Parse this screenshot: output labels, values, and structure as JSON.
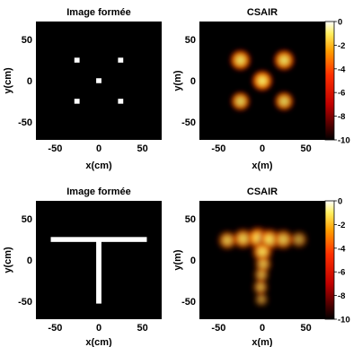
{
  "chart_data": [
    {
      "type": "heatmap",
      "title": "Image formée",
      "xlabel": "x(cm)",
      "ylabel": "y(cm)",
      "xlim": [
        -72,
        72
      ],
      "ylim": [
        -72,
        72
      ],
      "xticks": [
        "-50",
        "0",
        "50"
      ],
      "yticks": [
        "50",
        "0",
        "-50"
      ],
      "grid": false,
      "rectangles": [
        {
          "x": -25,
          "y": 25,
          "w": 6,
          "h": 6
        },
        {
          "x": 25,
          "y": 25,
          "w": 6,
          "h": 6
        },
        {
          "x": 0,
          "y": 0,
          "w": 6,
          "h": 6
        },
        {
          "x": -25,
          "y": -25,
          "w": 6,
          "h": 6
        },
        {
          "x": 25,
          "y": -25,
          "w": 6,
          "h": 6
        }
      ]
    },
    {
      "type": "heatmap",
      "title": "CSAIR",
      "xlabel": "x(m)",
      "ylabel": "y(m)",
      "xlim": [
        -72,
        72
      ],
      "ylim": [
        -72,
        72
      ],
      "xticks": [
        "-50",
        "0",
        "50"
      ],
      "yticks": [
        "50",
        "0",
        "-50"
      ],
      "colorbar": {
        "range": [
          -10,
          0
        ],
        "ticks": [
          "0",
          "-2",
          "-4",
          "-6",
          "-8",
          "-10"
        ],
        "colormap": "hot"
      },
      "blobs": [
        {
          "x": -25,
          "y": 25,
          "r": 12,
          "v": 0.9
        },
        {
          "x": 25,
          "y": 25,
          "r": 12,
          "v": 0.9
        },
        {
          "x": 0,
          "y": 0,
          "r": 12,
          "v": 0.95
        },
        {
          "x": -25,
          "y": -25,
          "r": 11,
          "v": 0.85
        },
        {
          "x": 25,
          "y": -25,
          "r": 11,
          "v": 0.85
        }
      ]
    },
    {
      "type": "heatmap",
      "title": "Image formée",
      "xlabel": "x(cm)",
      "ylabel": "y(cm)",
      "xlim": [
        -72,
        72
      ],
      "ylim": [
        -72,
        72
      ],
      "xticks": [
        "-50",
        "0",
        "50"
      ],
      "yticks": [
        "50",
        "0",
        "-50"
      ],
      "grid": false,
      "rectangles": [
        {
          "x": 0,
          "y": 25,
          "w": 110,
          "h": 6
        },
        {
          "x": 0,
          "y": -14,
          "w": 6,
          "h": 78
        }
      ]
    },
    {
      "type": "heatmap",
      "title": "CSAIR",
      "xlabel": "x(m)",
      "ylabel": "y(m)",
      "xlim": [
        -72,
        72
      ],
      "ylim": [
        -72,
        72
      ],
      "xticks": [
        "-50",
        "0",
        "50"
      ],
      "yticks": [
        "50",
        "0",
        "-50"
      ],
      "colorbar": {
        "range": [
          -10,
          0
        ],
        "ticks": [
          "0",
          "-2",
          "-4",
          "-6",
          "-8",
          "-10"
        ],
        "colormap": "hot"
      },
      "blobs": [
        {
          "x": -40,
          "y": 24,
          "r": 10,
          "v": 0.85
        },
        {
          "x": -22,
          "y": 26,
          "r": 11,
          "v": 0.9
        },
        {
          "x": -5,
          "y": 27,
          "r": 12,
          "v": 1.0
        },
        {
          "x": 8,
          "y": 25,
          "r": 12,
          "v": 0.95
        },
        {
          "x": 24,
          "y": 25,
          "r": 11,
          "v": 0.85
        },
        {
          "x": 42,
          "y": 25,
          "r": 9,
          "v": 0.7
        },
        {
          "x": 0,
          "y": 10,
          "r": 11,
          "v": 0.95
        },
        {
          "x": 1,
          "y": -5,
          "r": 9,
          "v": 0.85
        },
        {
          "x": -1,
          "y": -18,
          "r": 8,
          "v": 0.8
        },
        {
          "x": -2,
          "y": -33,
          "r": 8,
          "v": 0.8
        },
        {
          "x": -1,
          "y": -48,
          "r": 7,
          "v": 0.7
        }
      ]
    }
  ]
}
